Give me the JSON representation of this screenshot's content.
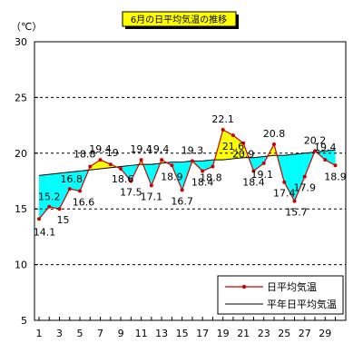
{
  "chart_data": {
    "type": "line",
    "title": "6月の日平均気温の推移",
    "unit": "（℃）",
    "ylim": [
      5,
      30
    ],
    "y_ticks": [
      5,
      10,
      15,
      20,
      25,
      30
    ],
    "x_tick_labels": [
      1,
      3,
      5,
      7,
      9,
      11,
      13,
      15,
      17,
      19,
      21,
      23,
      25,
      27,
      29
    ],
    "x": [
      1,
      2,
      3,
      4,
      5,
      6,
      7,
      8,
      9,
      10,
      11,
      12,
      13,
      14,
      15,
      16,
      17,
      18,
      19,
      20,
      21,
      22,
      23,
      24,
      25,
      26,
      27,
      28,
      29,
      30
    ],
    "series": [
      {
        "name": "日平均気温",
        "values": [
          14.1,
          15.2,
          15.0,
          16.8,
          16.6,
          18.8,
          19.4,
          19.0,
          18.6,
          17.5,
          19.4,
          17.1,
          19.4,
          18.9,
          16.7,
          19.3,
          18.4,
          18.8,
          22.1,
          21.6,
          20.9,
          18.4,
          19.1,
          20.8,
          17.4,
          15.7,
          17.9,
          20.2,
          19.4,
          18.9
        ],
        "color": "#cc0000"
      },
      {
        "name": "平年日平均気温",
        "values": [
          18.0,
          18.1,
          18.2,
          18.3,
          18.4,
          18.5,
          18.6,
          18.7,
          18.8,
          18.9,
          19.0,
          19.0,
          19.1,
          19.2,
          19.2,
          19.3,
          19.3,
          19.4,
          19.4,
          19.5,
          19.6,
          19.6,
          19.7,
          19.8,
          19.8,
          19.9,
          20.0,
          20.1,
          20.2,
          20.3
        ],
        "color": "#000000"
      }
    ],
    "fill_colors": {
      "below_normal": "#00ffff",
      "above_normal": "#ffff00"
    },
    "grid": {
      "horizontal": true,
      "style": "dashed"
    },
    "legend_position": "bottom-right"
  }
}
